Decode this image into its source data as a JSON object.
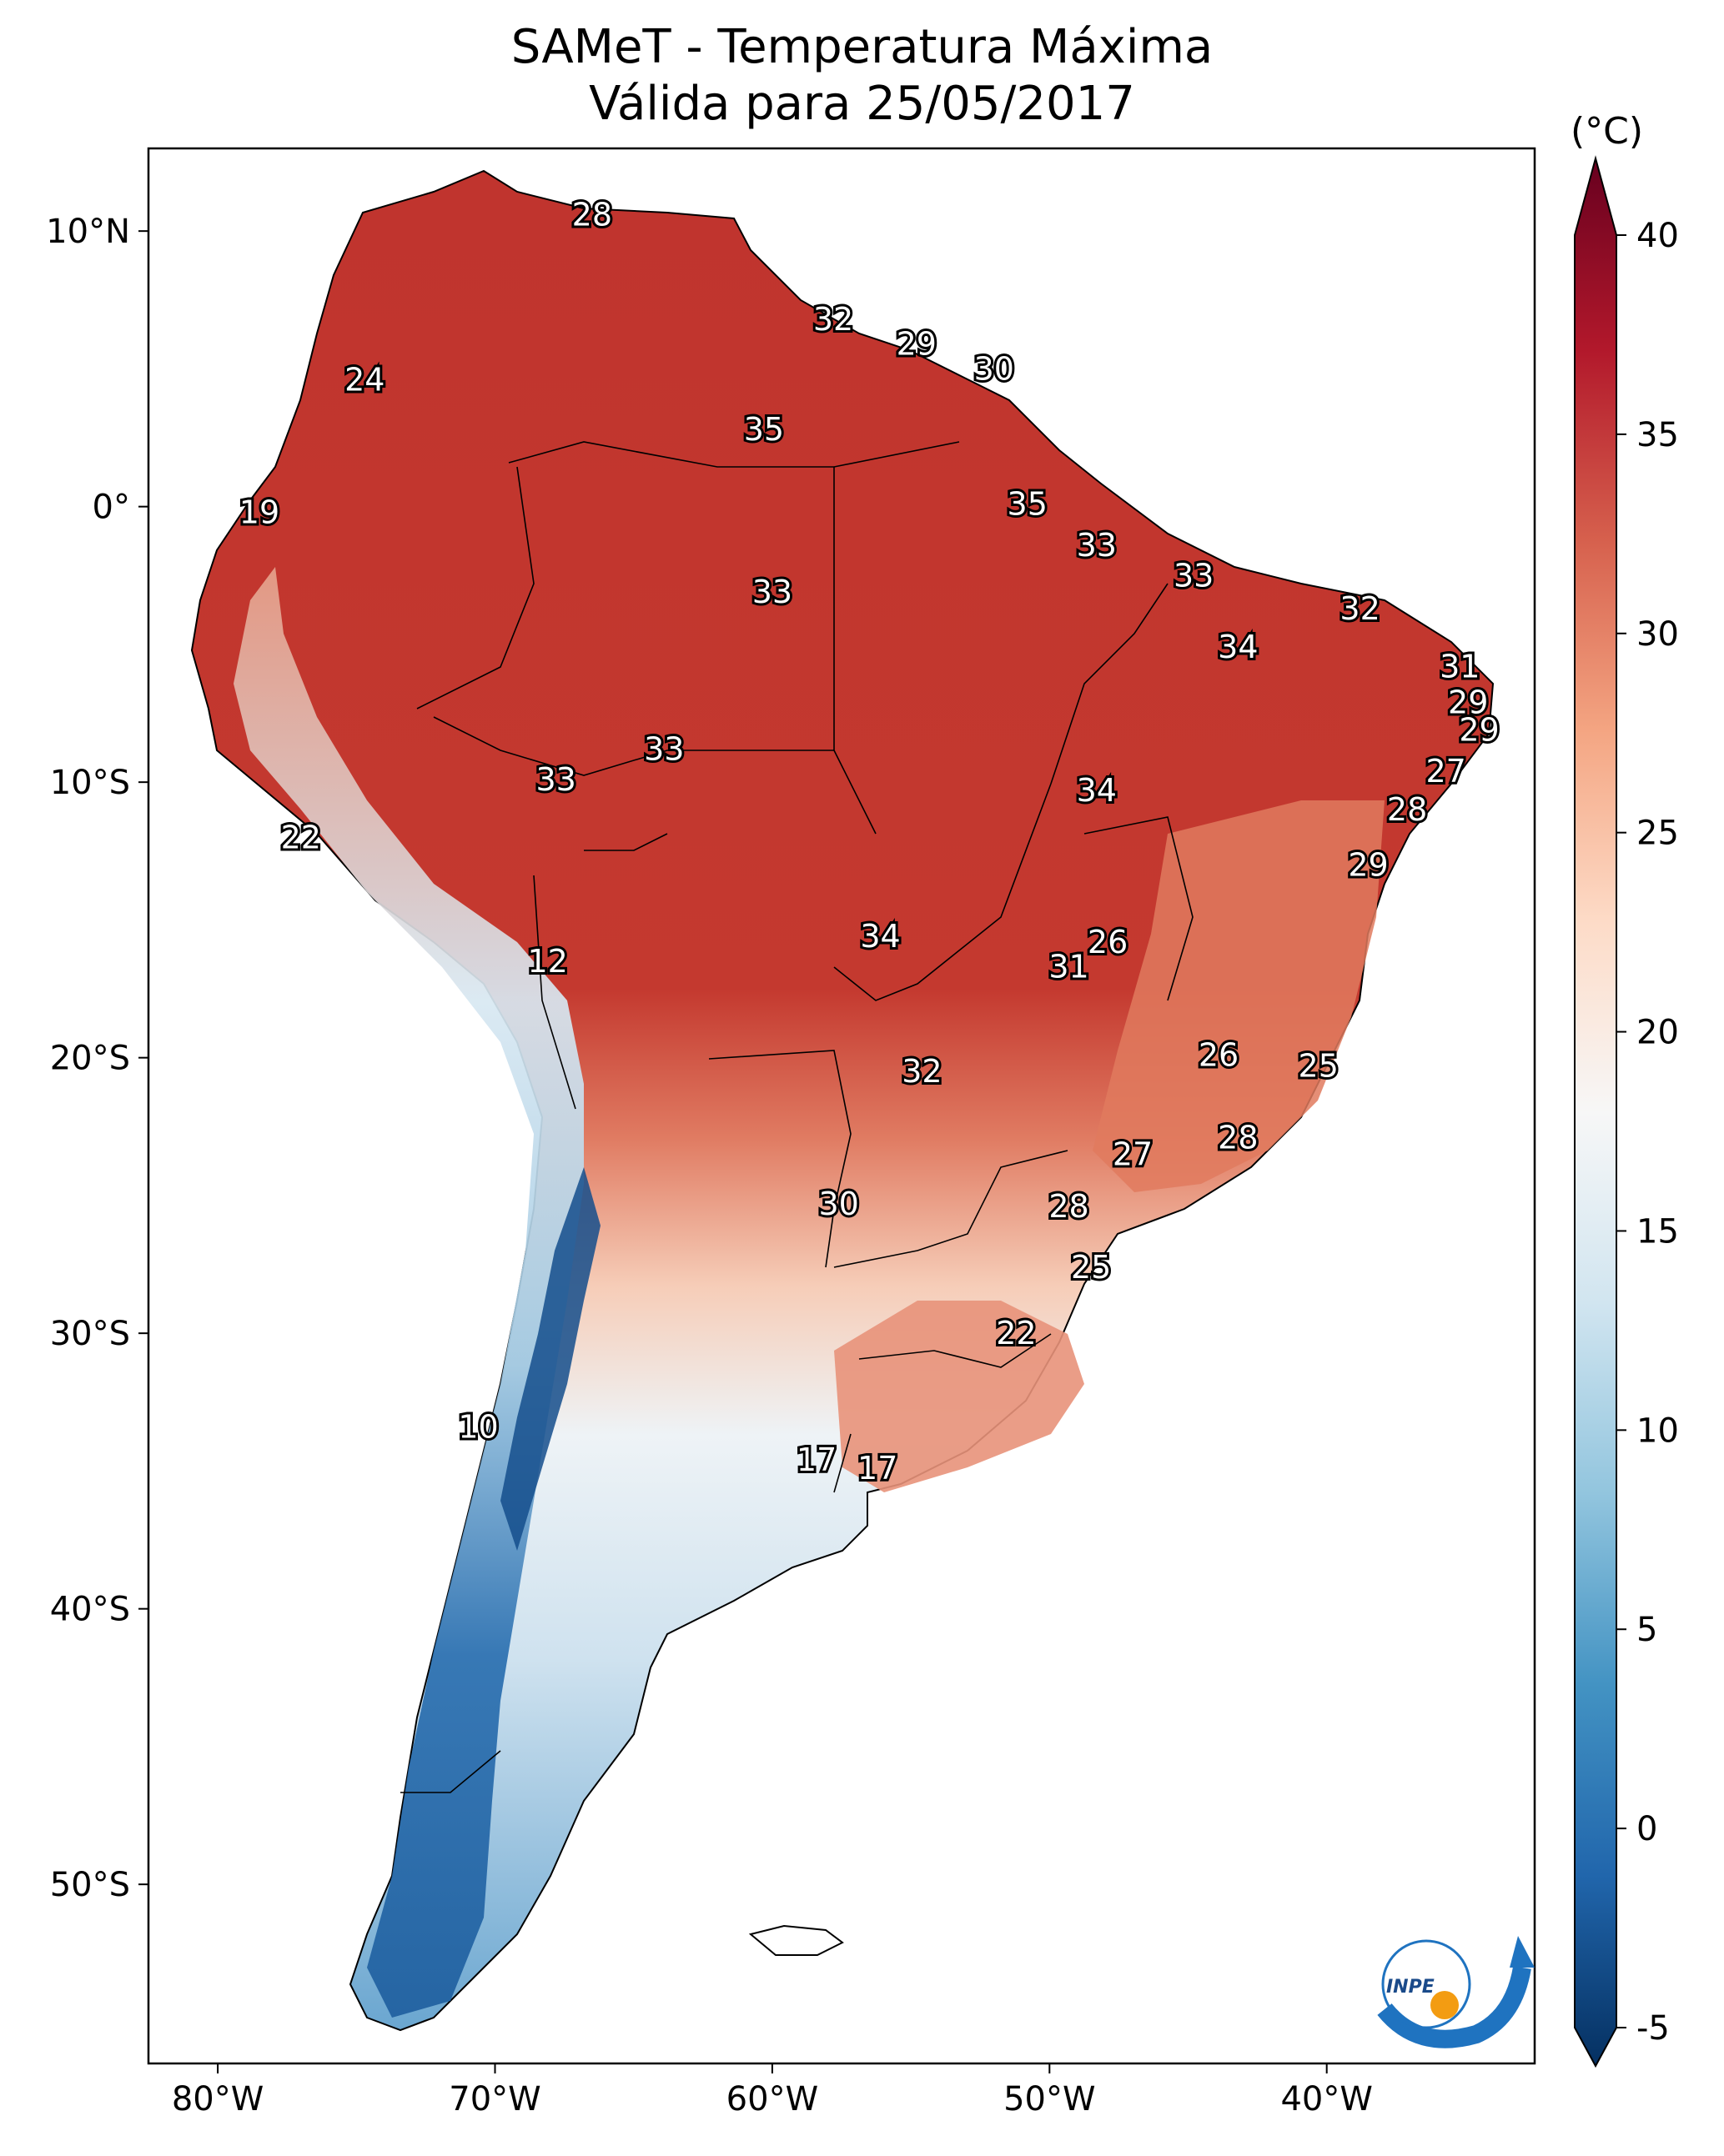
{
  "title": {
    "line1": "SAMeT - Temperatura Máxima",
    "line2": "Válida para 25/05/2017"
  },
  "colorbar": {
    "unit": "(°C)",
    "ticks": [
      "40",
      "35",
      "30",
      "25",
      "20",
      "15",
      "10",
      "5",
      "0",
      "-5"
    ],
    "range": [
      -5,
      40
    ],
    "colors": [
      "#053061",
      "#2166ac",
      "#4393c3",
      "#92c5de",
      "#d1e5f0",
      "#f7f7f7",
      "#fddbc7",
      "#f4a582",
      "#d6604d",
      "#b2182b",
      "#67001f"
    ]
  },
  "axes": {
    "lat_ticks": [
      "10°N",
      "0°",
      "10°S",
      "20°S",
      "30°S",
      "40°S",
      "50°S"
    ],
    "lon_ticks": [
      "80°W",
      "70°W",
      "60°W",
      "50°W",
      "40°W"
    ]
  },
  "station_values": [
    {
      "label": "28",
      "lon": -66.5,
      "lat": 10.6
    },
    {
      "label": "24",
      "lon": -74.7,
      "lat": 4.6
    },
    {
      "label": "32",
      "lon": -57.8,
      "lat": 6.8
    },
    {
      "label": "29",
      "lon": -54.8,
      "lat": 5.9
    },
    {
      "label": "30",
      "lon": -52.0,
      "lat": 5.0
    },
    {
      "label": "35",
      "lon": -60.3,
      "lat": 2.8
    },
    {
      "label": "19",
      "lon": -78.5,
      "lat": -0.2
    },
    {
      "label": "35",
      "lon": -50.8,
      "lat": 0.1
    },
    {
      "label": "33",
      "lon": -48.3,
      "lat": -1.4
    },
    {
      "label": "33",
      "lon": -44.8,
      "lat": -2.5
    },
    {
      "label": "33",
      "lon": -60.0,
      "lat": -3.1
    },
    {
      "label": "32",
      "lon": -38.8,
      "lat": -3.7
    },
    {
      "label": "34",
      "lon": -43.2,
      "lat": -5.1
    },
    {
      "label": "31",
      "lon": -35.2,
      "lat": -5.8
    },
    {
      "label": "29",
      "lon": -34.9,
      "lat": -7.1
    },
    {
      "label": "29",
      "lon": -34.5,
      "lat": -8.1
    },
    {
      "label": "33",
      "lon": -63.9,
      "lat": -8.8
    },
    {
      "label": "27",
      "lon": -35.7,
      "lat": -9.6
    },
    {
      "label": "33",
      "lon": -67.8,
      "lat": -9.9
    },
    {
      "label": "34",
      "lon": -48.3,
      "lat": -10.3
    },
    {
      "label": "28",
      "lon": -37.1,
      "lat": -11.0
    },
    {
      "label": "22",
      "lon": -77.0,
      "lat": -12.0
    },
    {
      "label": "29",
      "lon": -38.5,
      "lat": -13.0
    },
    {
      "label": "34",
      "lon": -56.1,
      "lat": -15.6
    },
    {
      "label": "26",
      "lon": -47.9,
      "lat": -15.8
    },
    {
      "label": "12",
      "lon": -68.1,
      "lat": -16.5
    },
    {
      "label": "31",
      "lon": -49.3,
      "lat": -16.7
    },
    {
      "label": "26",
      "lon": -43.9,
      "lat": -19.9
    },
    {
      "label": "25",
      "lon": -40.3,
      "lat": -20.3
    },
    {
      "label": "32",
      "lon": -54.6,
      "lat": -20.5
    },
    {
      "label": "28",
      "lon": -43.2,
      "lat": -22.9
    },
    {
      "label": "27",
      "lon": -47.0,
      "lat": -23.5
    },
    {
      "label": "30",
      "lon": -57.6,
      "lat": -25.3
    },
    {
      "label": "28",
      "lon": -49.3,
      "lat": -25.4
    },
    {
      "label": "25",
      "lon": -48.5,
      "lat": -27.6
    },
    {
      "label": "22",
      "lon": -51.2,
      "lat": -30.0
    },
    {
      "label": "10",
      "lon": -70.6,
      "lat": -33.4
    },
    {
      "label": "17",
      "lon": -58.4,
      "lat": -34.6
    },
    {
      "label": "17",
      "lon": -56.2,
      "lat": -34.9
    }
  ],
  "logo": {
    "text": "INPE"
  }
}
